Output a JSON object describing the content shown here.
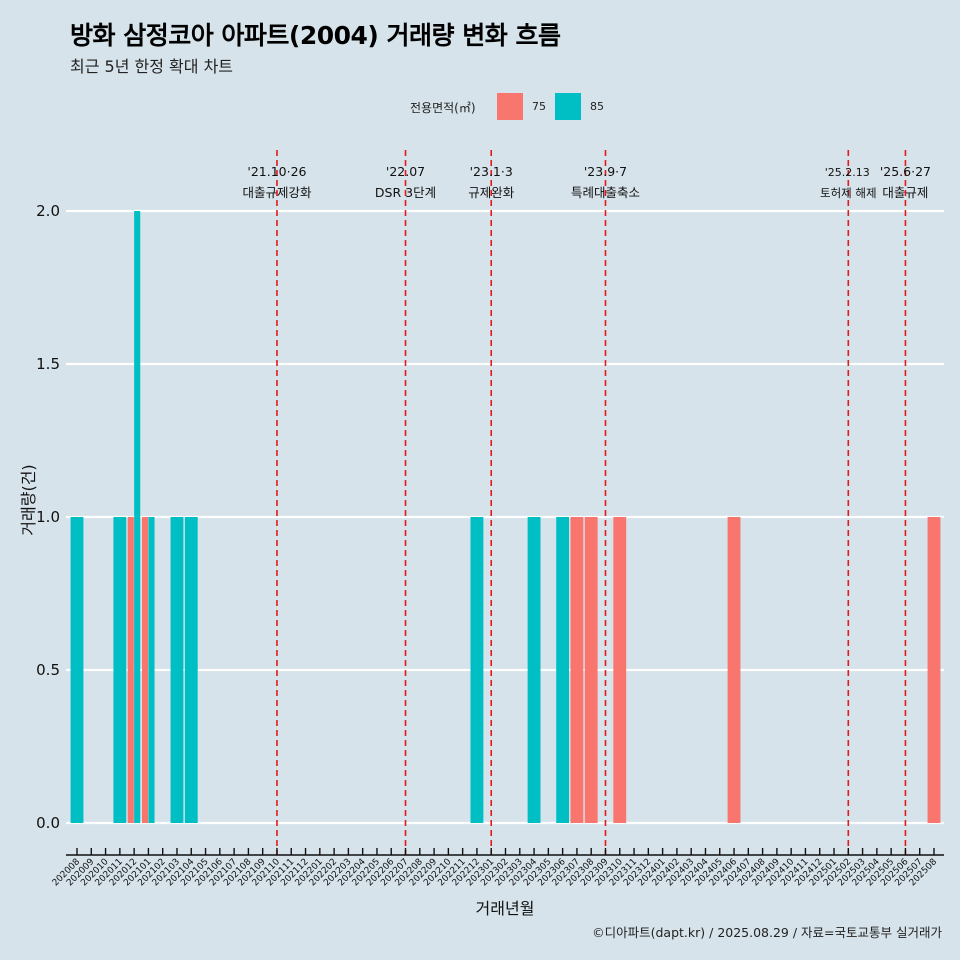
{
  "header": {
    "title": "방화 삼정코아 아파트(2004) 거래량 변화 흐름",
    "subtitle": "최근 5년 한정 확대 차트"
  },
  "legend": {
    "title": "전용면적(㎡)",
    "items": [
      {
        "label": "75",
        "color": "#f8766d"
      },
      {
        "label": "85",
        "color": "#00bfc4"
      }
    ]
  },
  "footer": {
    "credit": "©디아파트(dapt.kr) / 2025.08.29 / 자료=국토교통부 실거래가"
  },
  "colors": {
    "background": "#d6e3ea",
    "grid": "#ffffff",
    "event_line": "#e31a1c",
    "series_75": "#f8766d",
    "series_85": "#00bfc4"
  },
  "chart_data": {
    "type": "bar",
    "title": "방화 삼정코아 아파트(2004) 거래량 변화 흐름",
    "subtitle": "최근 5년 한정 확대 차트",
    "xlabel": "거래년월",
    "ylabel": "거래량(건)",
    "ylim": [
      0,
      2
    ],
    "yticks": [
      "0.0",
      "0.5",
      "1.0",
      "1.5",
      "2.0"
    ],
    "grid": true,
    "legend_position": "top",
    "bar_mode": "dodge",
    "categories": [
      "202008",
      "202009",
      "202010",
      "202011",
      "202012",
      "202101",
      "202102",
      "202103",
      "202104",
      "202105",
      "202106",
      "202107",
      "202108",
      "202109",
      "202110",
      "202111",
      "202112",
      "202201",
      "202202",
      "202203",
      "202204",
      "202205",
      "202206",
      "202207",
      "202208",
      "202209",
      "202210",
      "202211",
      "202212",
      "202301",
      "202302",
      "202303",
      "202304",
      "202305",
      "202306",
      "202307",
      "202308",
      "202309",
      "202310",
      "202311",
      "202312",
      "202401",
      "202402",
      "202403",
      "202404",
      "202405",
      "202406",
      "202407",
      "202408",
      "202409",
      "202410",
      "202411",
      "202412",
      "202501",
      "202502",
      "202503",
      "202504",
      "202505",
      "202506",
      "202507",
      "202508"
    ],
    "series": [
      {
        "name": "75",
        "points": [
          {
            "x": "202012",
            "y": 1
          },
          {
            "x": "202101",
            "y": 1
          },
          {
            "x": "202307",
            "y": 1
          },
          {
            "x": "202308",
            "y": 1
          },
          {
            "x": "202310",
            "y": 1
          },
          {
            "x": "202406",
            "y": 1
          },
          {
            "x": "202508",
            "y": 1
          }
        ]
      },
      {
        "name": "85",
        "points": [
          {
            "x": "202008",
            "y": 1
          },
          {
            "x": "202011",
            "y": 1
          },
          {
            "x": "202012",
            "y": 2
          },
          {
            "x": "202101",
            "y": 1
          },
          {
            "x": "202103",
            "y": 1
          },
          {
            "x": "202104",
            "y": 1
          },
          {
            "x": "202212",
            "y": 1
          },
          {
            "x": "202304",
            "y": 1
          },
          {
            "x": "202306",
            "y": 1
          }
        ]
      }
    ],
    "annotations": [
      {
        "x": "202110",
        "date": "'21.10·26",
        "label": "대출규제강화"
      },
      {
        "x": "202207",
        "date": "'22.07",
        "label": "DSR 3단계"
      },
      {
        "x": "202301",
        "date": "'23.1·3",
        "label": "규제완화"
      },
      {
        "x": "202309",
        "date": "'23.9·7",
        "label": "특례대출축소"
      },
      {
        "x": "202502",
        "date": "'25.2.13",
        "label": "토허제 해제"
      },
      {
        "x": "202506",
        "date": "'25.6·27",
        "label": "대출규제"
      }
    ]
  }
}
